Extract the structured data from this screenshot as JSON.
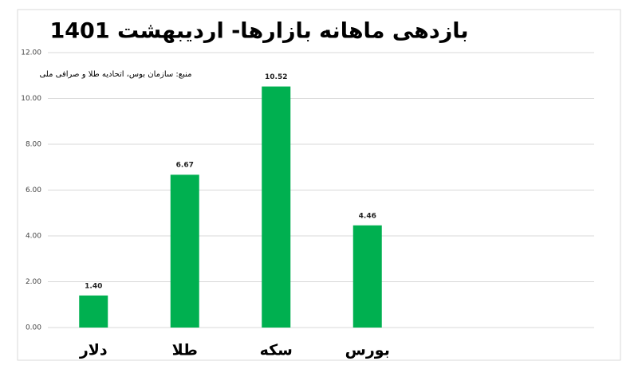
{
  "chart_data": {
    "type": "bar",
    "title": "بازدهی ماهانه بازارها- اردیبهشت 1401",
    "subtitle": "منبع:  سازمان بوس، اتحادیه طلا و صرافی ملی",
    "categories": [
      "دلار",
      "طلا",
      "سکه",
      "بورس"
    ],
    "values": [
      1.4,
      6.67,
      10.52,
      4.46
    ],
    "value_labels": [
      "1.40",
      "6.67",
      "10.52",
      "4.46"
    ],
    "color": "#00b050",
    "ylim": [
      0,
      12
    ],
    "yticks": [
      {
        "value": 0,
        "label": "0.00"
      },
      {
        "value": 2,
        "label": "2.00"
      },
      {
        "value": 4,
        "label": "4.00"
      },
      {
        "value": 6,
        "label": "6.00"
      },
      {
        "value": 8,
        "label": "8.00"
      },
      {
        "value": 10,
        "label": "10.00"
      },
      {
        "value": 12,
        "label": "12.00"
      }
    ],
    "grid": true
  }
}
